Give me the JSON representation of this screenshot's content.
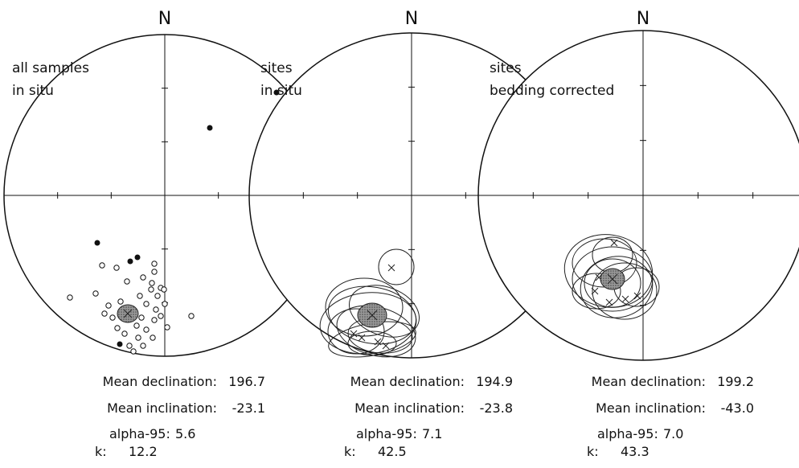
{
  "panels": [
    {
      "north": "N",
      "title": [
        "all samples",
        "in situ"
      ],
      "stats": [
        {
          "label": "Mean declination:",
          "value": "196.7"
        },
        {
          "label": "Mean inclination:",
          "value": "-23.1"
        },
        {
          "label": "alpha-95:",
          "value": "5.6"
        },
        {
          "label": "k:",
          "value": "12.2"
        }
      ]
    },
    {
      "north": "N",
      "title": [
        "sites",
        "in situ"
      ],
      "stats": [
        {
          "label": "Mean declination:",
          "value": "194.9"
        },
        {
          "label": "Mean inclination:",
          "value": "-23.8"
        },
        {
          "label": "alpha-95:",
          "value": "7.1"
        },
        {
          "label": "k:",
          "value": "42.5"
        }
      ]
    },
    {
      "north": "N",
      "title": [
        "sites",
        "bedding corrected"
      ],
      "stats": [
        {
          "label": "Mean declination:",
          "value": "199.2"
        },
        {
          "label": "Mean inclination:",
          "value": "-43.0"
        },
        {
          "label": "alpha-95:",
          "value": "7.0"
        },
        {
          "label": "k:",
          "value": "43.3"
        }
      ]
    }
  ]
}
